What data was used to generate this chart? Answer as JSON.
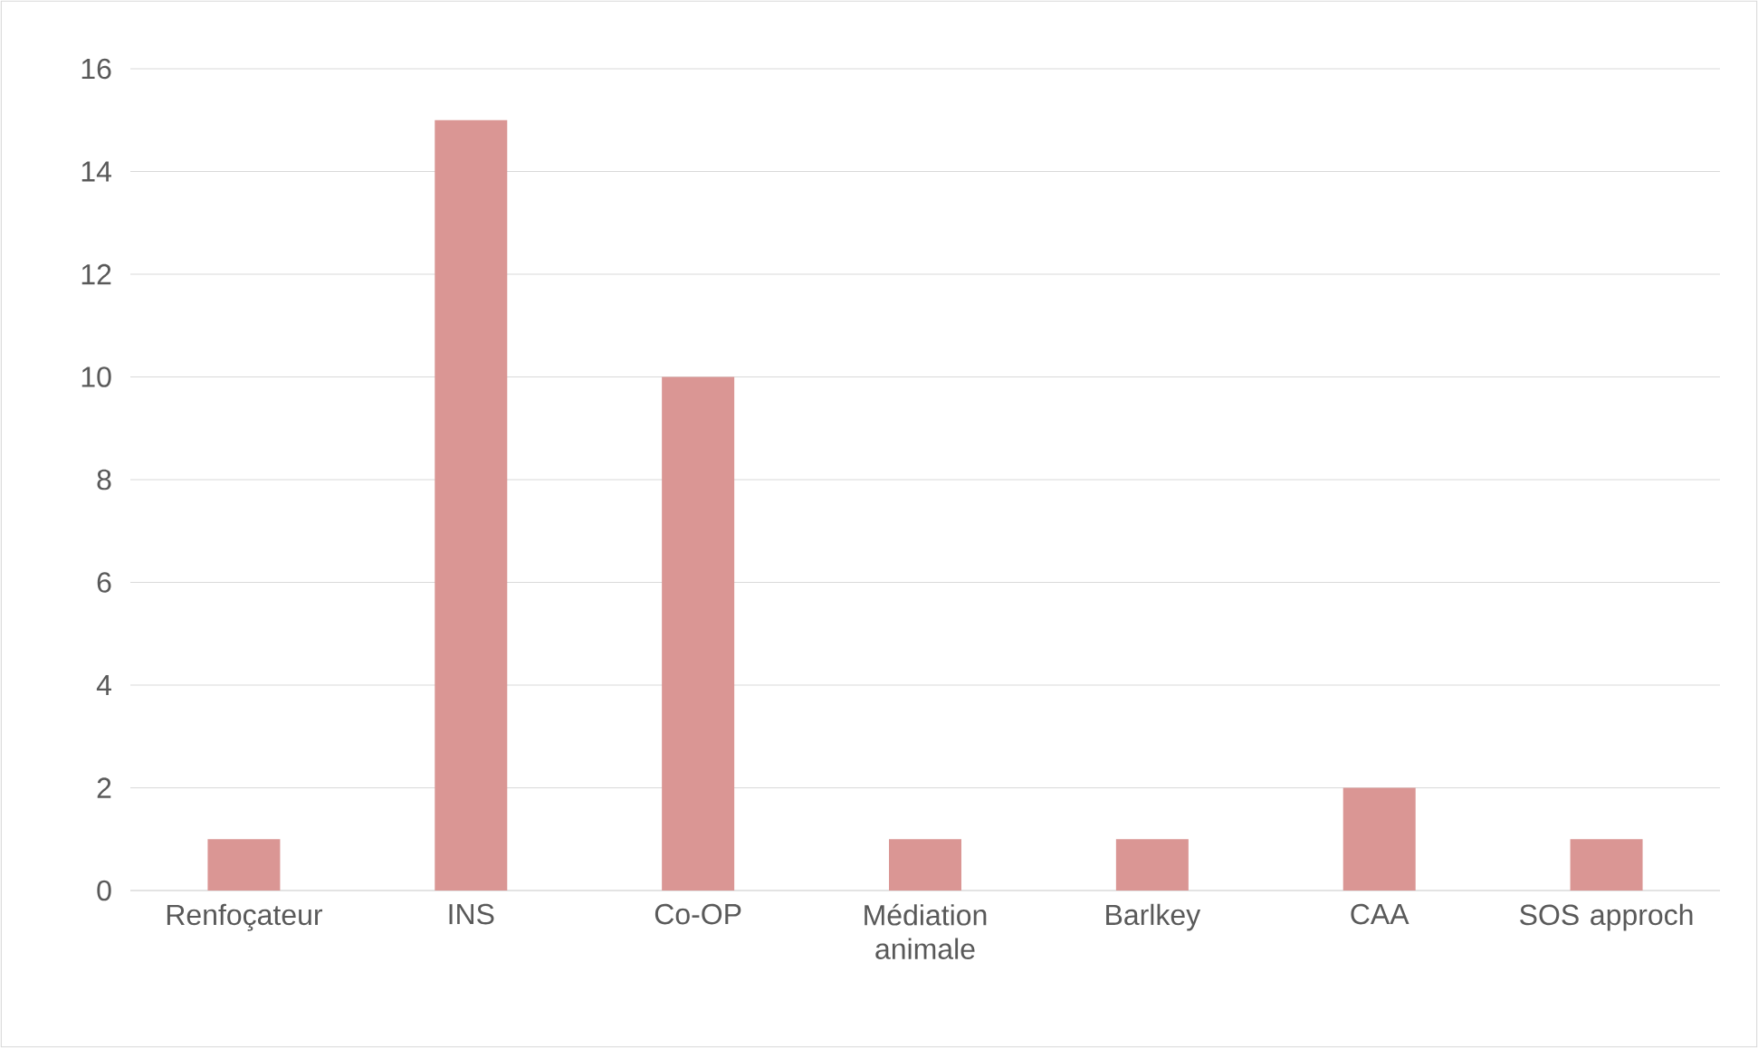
{
  "chart_data": {
    "type": "bar",
    "categories": [
      "Renfoçateur",
      "INS",
      "Co-OP",
      "Médiation animale",
      "Barlkey",
      "CAA",
      "SOS approch"
    ],
    "values": [
      1,
      15,
      10,
      1,
      1,
      2,
      1
    ],
    "color": "#da9694",
    "ylim": [
      0,
      16
    ],
    "yticks": [
      0,
      2,
      4,
      6,
      8,
      10,
      12,
      14,
      16
    ],
    "grid": "y"
  }
}
